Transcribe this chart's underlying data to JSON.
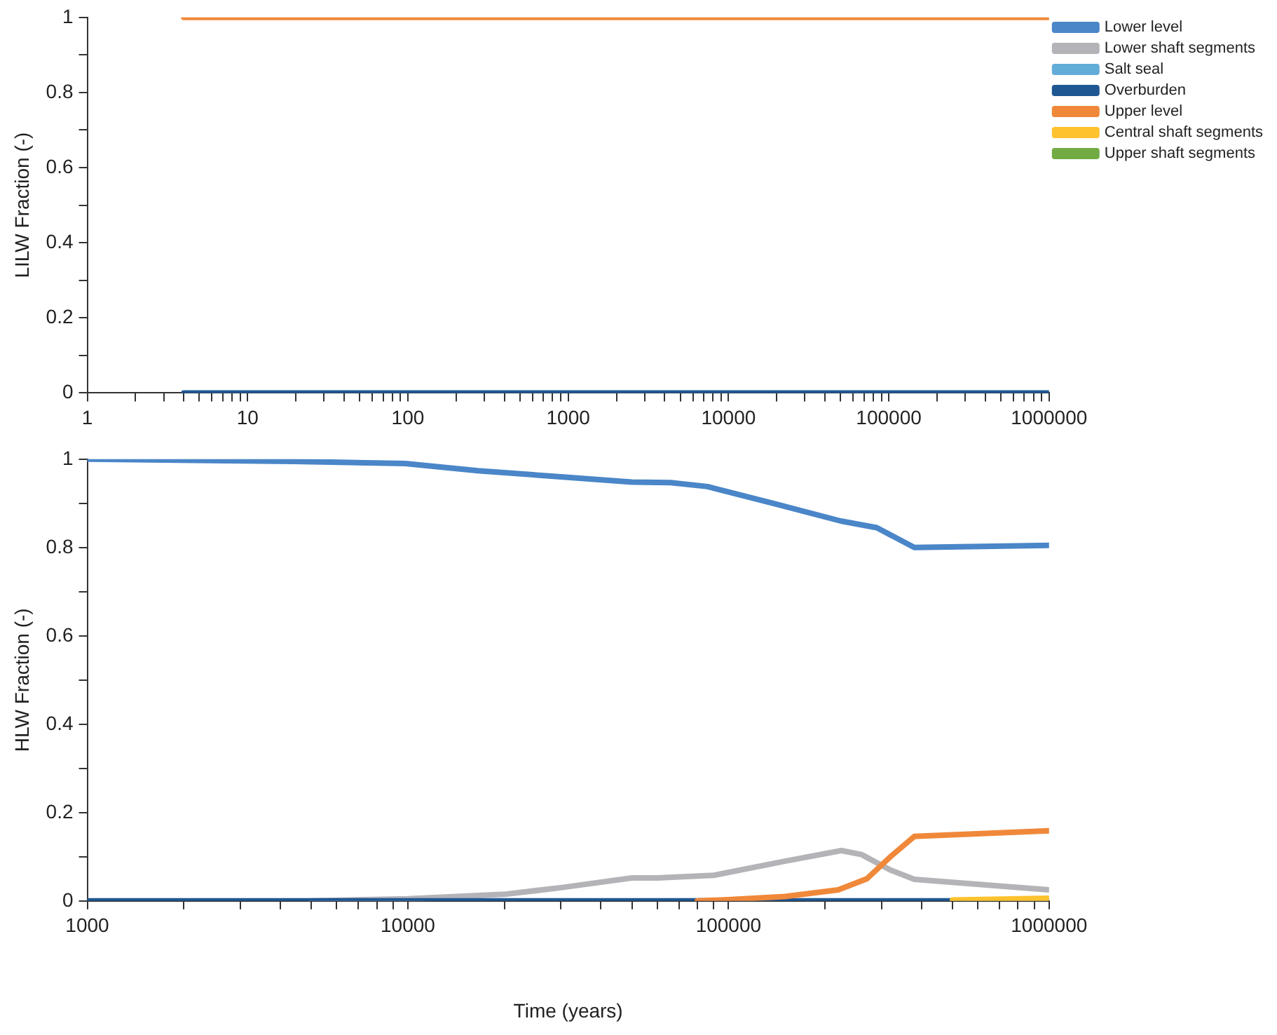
{
  "chart_data": [
    {
      "type": "line",
      "ylabel": "LILW Fraction (-)",
      "log": "x",
      "xlim": [
        1,
        1000000
      ],
      "ylim": [
        0,
        1
      ],
      "xticks": [
        1,
        {
          "value": 2,
          "label": null
        },
        {
          "value": 3,
          "label": null
        },
        {
          "value": 4,
          "label": null
        },
        {
          "value": 5,
          "label": null
        },
        {
          "value": 6,
          "label": null
        },
        {
          "value": 7,
          "label": null
        },
        {
          "value": 8,
          "label": null
        },
        {
          "value": 9,
          "label": null
        },
        10,
        {
          "value": 20,
          "label": null
        },
        {
          "value": 30,
          "label": null
        },
        {
          "value": 40,
          "label": null
        },
        {
          "value": 50,
          "label": null
        },
        {
          "value": 60,
          "label": null
        },
        {
          "value": 70,
          "label": null
        },
        {
          "value": 80,
          "label": null
        },
        {
          "value": 90,
          "label": null
        },
        100,
        {
          "value": 200,
          "label": null
        },
        {
          "value": 300,
          "label": null
        },
        {
          "value": 400,
          "label": null
        },
        {
          "value": 500,
          "label": null
        },
        {
          "value": 600,
          "label": null
        },
        {
          "value": 700,
          "label": null
        },
        {
          "value": 800,
          "label": null
        },
        {
          "value": 900,
          "label": null
        },
        1000,
        {
          "value": 2000,
          "label": null
        },
        {
          "value": 3000,
          "label": null
        },
        {
          "value": 4000,
          "label": null
        },
        {
          "value": 5000,
          "label": null
        },
        {
          "value": 6000,
          "label": null
        },
        {
          "value": 7000,
          "label": null
        },
        {
          "value": 8000,
          "label": null
        },
        {
          "value": 9000,
          "label": null
        },
        10000,
        {
          "value": 20000,
          "label": null
        },
        {
          "value": 30000,
          "label": null
        },
        {
          "value": 40000,
          "label": null
        },
        {
          "value": 50000,
          "label": null
        },
        {
          "value": 60000,
          "label": null
        },
        {
          "value": 70000,
          "label": null
        },
        {
          "value": 80000,
          "label": null
        },
        {
          "value": 90000,
          "label": null
        },
        100000,
        {
          "value": 200000,
          "label": null
        },
        {
          "value": 300000,
          "label": null
        },
        {
          "value": 400000,
          "label": null
        },
        {
          "value": 500000,
          "label": null
        },
        {
          "value": 600000,
          "label": null
        },
        {
          "value": 700000,
          "label": null
        },
        {
          "value": 800000,
          "label": null
        },
        {
          "value": 900000,
          "label": null
        },
        1000000
      ],
      "yticks": [
        0,
        {
          "value": 0.1,
          "label": null
        },
        0.2,
        {
          "value": 0.3,
          "label": null
        },
        0.4,
        {
          "value": 0.5,
          "label": null
        },
        0.6,
        {
          "value": 0.7,
          "label": null
        },
        0.8,
        {
          "value": 0.9,
          "label": null
        },
        1
      ],
      "grid": false,
      "legend": "top right",
      "marker": "none",
      "line_style": "solid",
      "x": [
        4,
        1000000
      ],
      "series": [
        {
          "name": "Lower level",
          "color": "#4a86c8",
          "values": [
            null,
            null
          ]
        },
        {
          "name": "Lower shaft segments",
          "color": "#b4b4b8",
          "values": [
            null,
            null
          ]
        },
        {
          "name": "Salt seal",
          "color": "#62acd8",
          "values": [
            null,
            null
          ]
        },
        {
          "name": "Overburden",
          "color": "#1f5793",
          "values": [
            0,
            0
          ]
        },
        {
          "name": "Upper level",
          "color": "#f0883a",
          "values": [
            1,
            1
          ]
        },
        {
          "name": "Central shaft segments",
          "color": "#fec22e",
          "values": [
            null,
            null
          ]
        },
        {
          "name": "Upper shaft segments",
          "color": "#72ab44",
          "values": [
            null,
            null
          ]
        }
      ]
    },
    {
      "type": "line",
      "ylabel": "HLW Fraction (-)",
      "xlabel": "Time (years)",
      "log": "x",
      "xlim": [
        1000,
        1000000
      ],
      "ylim": [
        0,
        1
      ],
      "xticks": [
        1000,
        {
          "value": 2000,
          "label": null
        },
        {
          "value": 3000,
          "label": null
        },
        {
          "value": 4000,
          "label": null
        },
        {
          "value": 5000,
          "label": null
        },
        {
          "value": 6000,
          "label": null
        },
        {
          "value": 7000,
          "label": null
        },
        {
          "value": 8000,
          "label": null
        },
        {
          "value": 9000,
          "label": null
        },
        10000,
        {
          "value": 20000,
          "label": null
        },
        {
          "value": 30000,
          "label": null
        },
        {
          "value": 40000,
          "label": null
        },
        {
          "value": 50000,
          "label": null
        },
        {
          "value": 60000,
          "label": null
        },
        {
          "value": 70000,
          "label": null
        },
        {
          "value": 80000,
          "label": null
        },
        {
          "value": 90000,
          "label": null
        },
        100000,
        {
          "value": 200000,
          "label": null
        },
        {
          "value": 300000,
          "label": null
        },
        {
          "value": 400000,
          "label": null
        },
        {
          "value": 500000,
          "label": null
        },
        {
          "value": 600000,
          "label": null
        },
        {
          "value": 700000,
          "label": null
        },
        {
          "value": 800000,
          "label": null
        },
        {
          "value": 900000,
          "label": null
        },
        1000000
      ],
      "yticks": [
        0,
        {
          "value": 0.1,
          "label": null
        },
        0.2,
        {
          "value": 0.3,
          "label": null
        },
        0.4,
        {
          "value": 0.5,
          "label": null
        },
        0.6,
        {
          "value": 0.7,
          "label": null
        },
        0.8,
        {
          "value": 0.9,
          "label": null
        },
        1
      ],
      "grid": false,
      "legend": false,
      "marker": "none",
      "line_style": "solid",
      "series": [
        {
          "color": "#4a86c8",
          "x": [
            1000,
            4400,
            9800,
            16500,
            30000,
            50000,
            66000,
            86000,
            138000,
            224000,
            290000,
            380000,
            1000000
          ],
          "values": [
            1,
            0.995,
            0.99,
            0.974,
            0.96,
            0.948,
            0.947,
            0.938,
            0.9,
            0.86,
            0.845,
            0.8,
            0.805
          ]
        },
        {
          "color": "#b4b4b8",
          "x": [
            5000,
            10000,
            20000,
            30000,
            50000,
            60000,
            90000,
            150000,
            225000,
            260000,
            320000,
            380000,
            1000000
          ],
          "values": [
            0,
            0.005,
            0.015,
            0.03,
            0.052,
            0.052,
            0.058,
            0.09,
            0.114,
            0.105,
            0.07,
            0.049,
            0.025
          ]
        },
        {
          "color": "#1f5793",
          "x": [
            1000,
            1000000
          ],
          "values": [
            0,
            0
          ]
        },
        {
          "color": "#f0883a",
          "x": [
            80000,
            100000,
            150000,
            220000,
            270000,
            320000,
            380000,
            1000000
          ],
          "values": [
            0,
            0.003,
            0.01,
            0.025,
            0.05,
            0.1,
            0.146,
            0.159
          ]
        },
        {
          "color": "#fec22e",
          "x": [
            500000,
            1000000
          ],
          "values": [
            0.002,
            0.006
          ]
        }
      ]
    }
  ]
}
